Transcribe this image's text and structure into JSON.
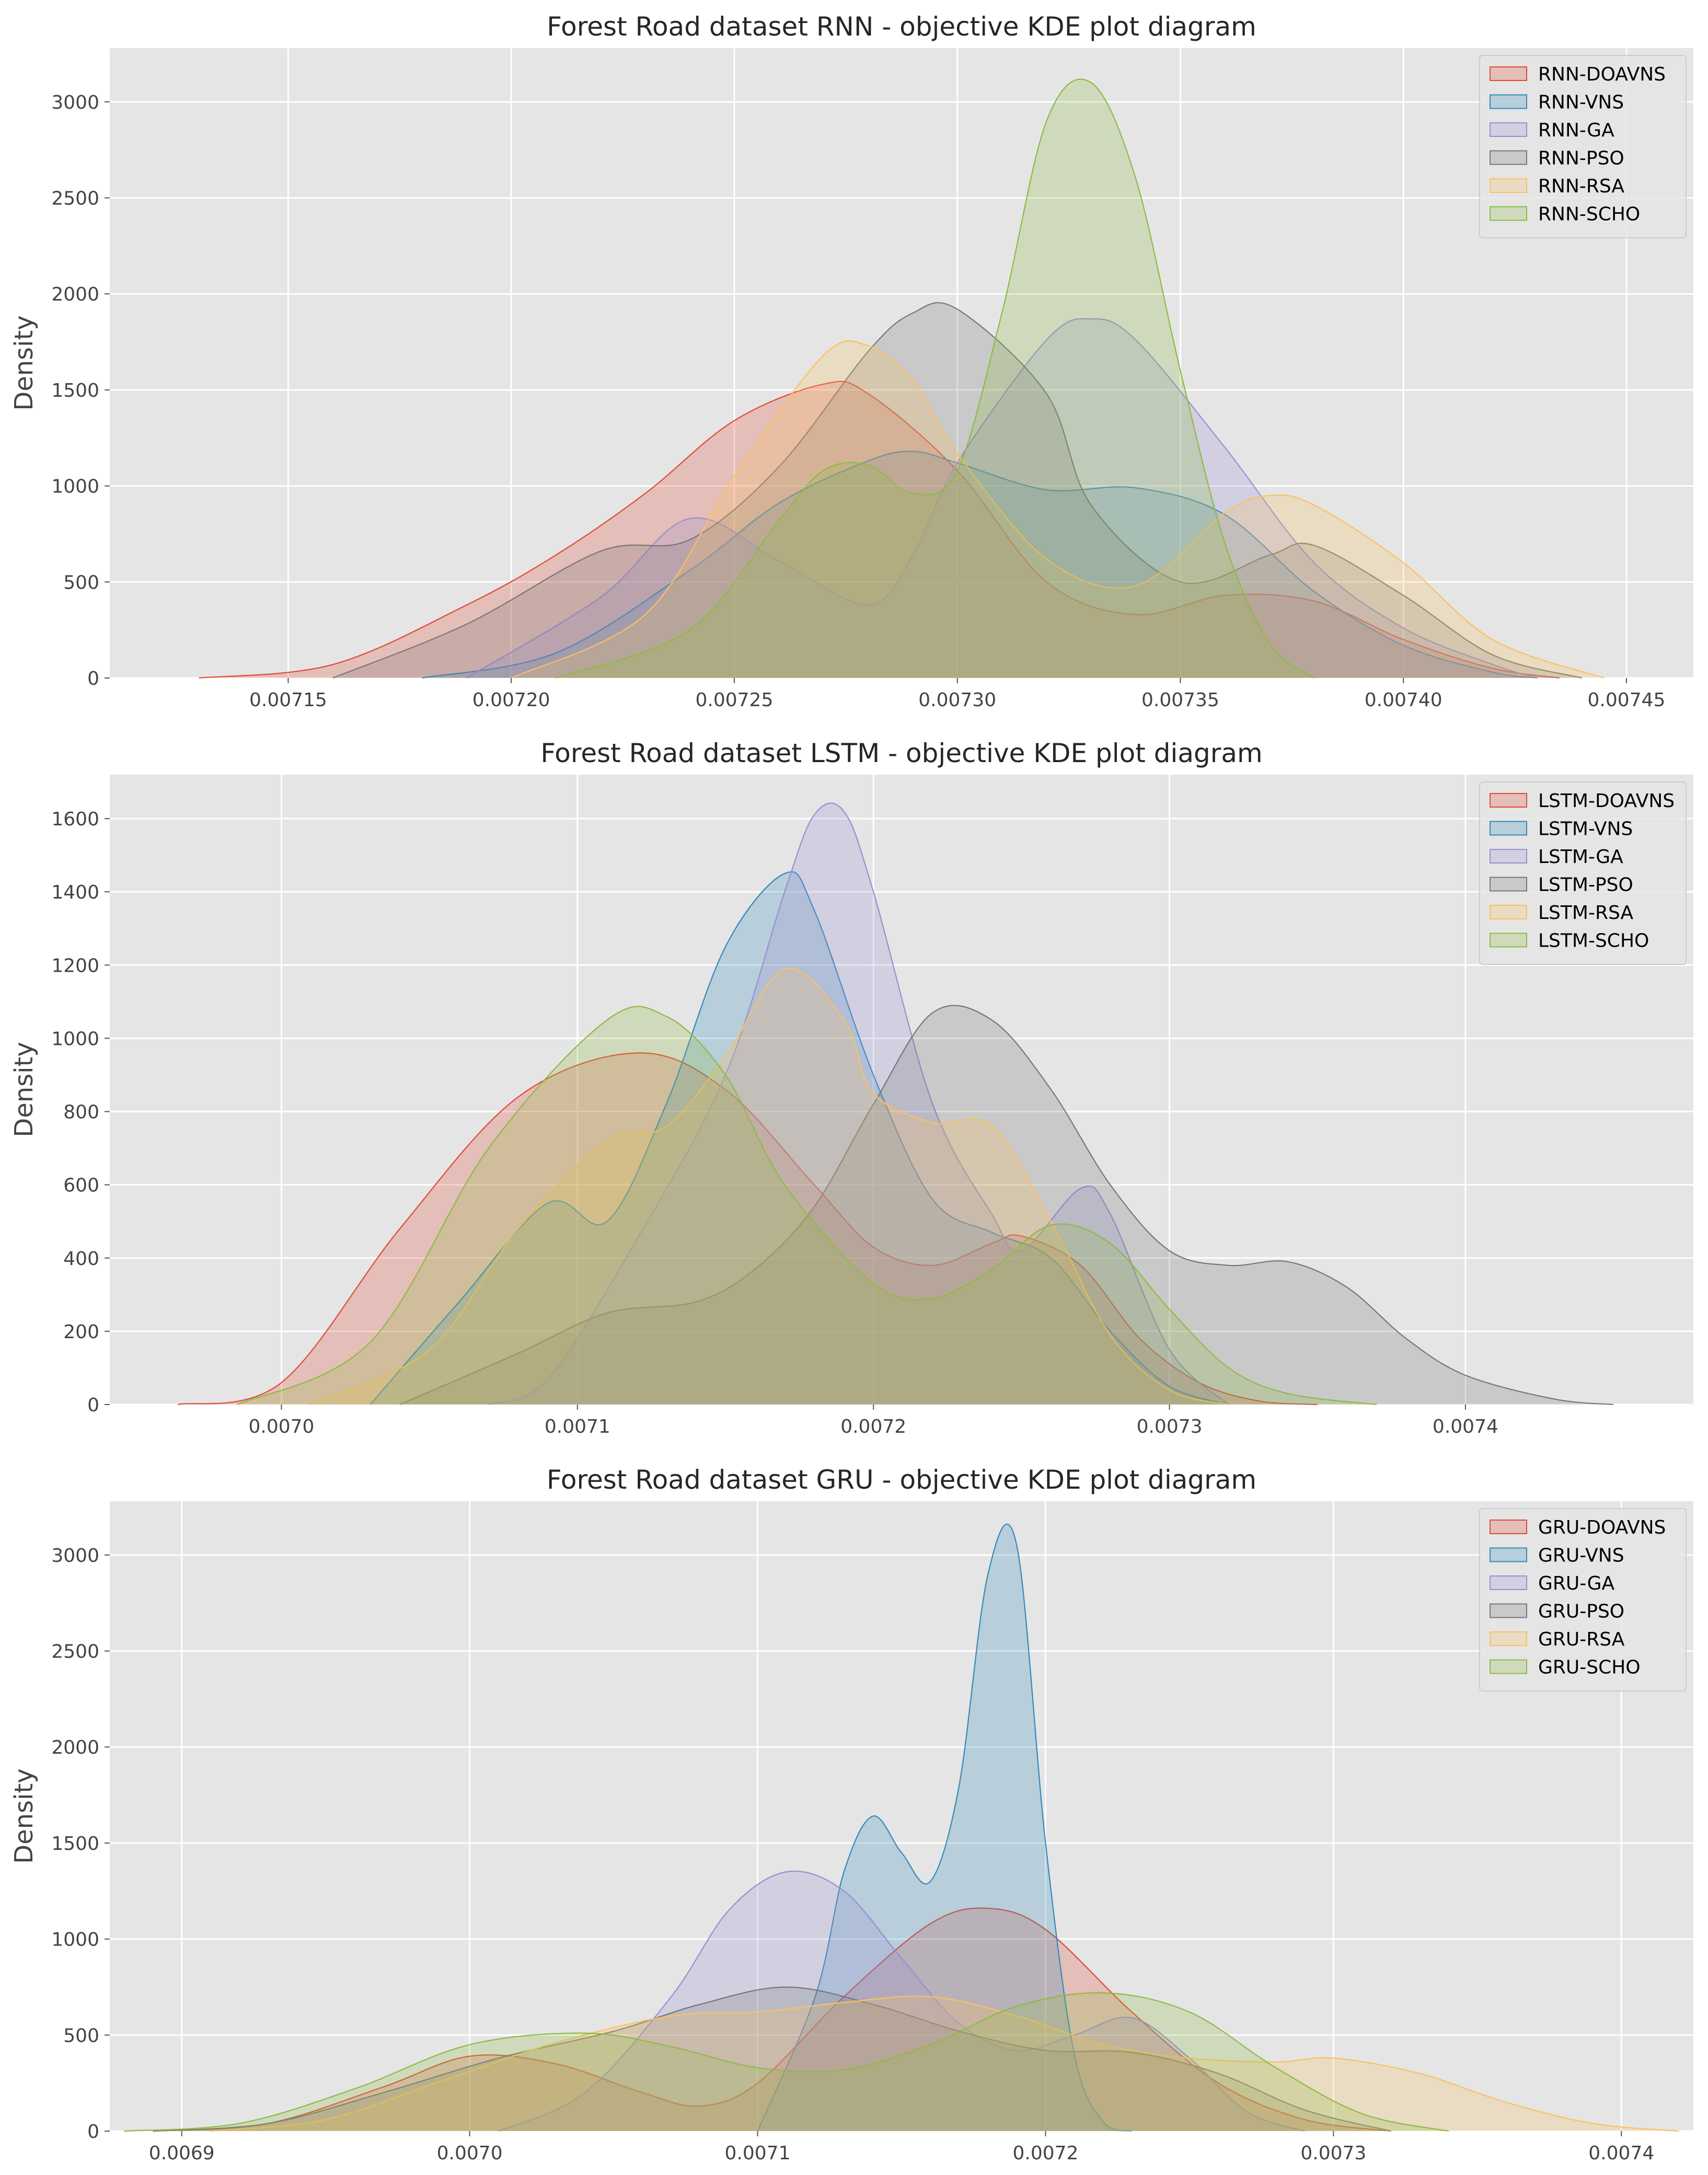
{
  "chart_data": [
    {
      "type": "kde",
      "title": "Forest Road dataset RNN -  objective KDE plot diagram",
      "xlabel": "",
      "ylabel": "Density",
      "xlim": [
        0.00711,
        0.007465
      ],
      "ylim": [
        0,
        3280
      ],
      "xticks": [
        0.00715,
        0.0072,
        0.00725,
        0.0073,
        0.00735,
        0.0074,
        0.00745
      ],
      "xtick_labels": [
        "0.00715",
        "0.00720",
        "0.00725",
        "0.00730",
        "0.00735",
        "0.00740",
        "0.00745"
      ],
      "yticks": [
        0,
        500,
        1000,
        1500,
        2000,
        2500,
        3000
      ],
      "ytick_labels": [
        "0",
        "500",
        "1000",
        "1500",
        "2000",
        "2500",
        "3000"
      ],
      "grid": true,
      "legend_position": "top-right",
      "series": [
        {
          "name": "RNN-DOAVNS",
          "color": "#e24a33",
          "x": [
            0.00713,
            0.00716,
            0.00719,
            0.00721,
            0.00723,
            0.00725,
            0.00727,
            0.00728,
            0.0073,
            0.00732,
            0.00734,
            0.00736,
            0.00738,
            0.0074,
            0.00742,
            0.007435
          ],
          "y": [
            0,
            70,
            380,
            640,
            960,
            1340,
            1530,
            1480,
            1080,
            500,
            330,
            430,
            400,
            200,
            50,
            0
          ]
        },
        {
          "name": "RNN-VNS",
          "color": "#348abd",
          "x": [
            0.00718,
            0.00721,
            0.00724,
            0.00726,
            0.00728,
            0.00729,
            0.0073,
            0.00732,
            0.00734,
            0.00736,
            0.00738,
            0.0074,
            0.00742,
            0.00743
          ],
          "y": [
            0,
            130,
            560,
            910,
            1130,
            1180,
            1120,
            980,
            990,
            850,
            450,
            170,
            30,
            0
          ]
        },
        {
          "name": "RNN-GA",
          "color": "#988ed5",
          "x": [
            0.00719,
            0.00722,
            0.00724,
            0.00726,
            0.00728,
            0.00729,
            0.0073,
            0.00732,
            0.00733,
            0.00734,
            0.00736,
            0.00738,
            0.0074,
            0.00742,
            0.00743
          ],
          "y": [
            0,
            420,
            830,
            610,
            380,
            640,
            1120,
            1760,
            1870,
            1760,
            1200,
            600,
            260,
            70,
            0
          ]
        },
        {
          "name": "RNN-PSO",
          "color": "#777777",
          "x": [
            0.00716,
            0.00719,
            0.00722,
            0.00724,
            0.00726,
            0.00728,
            0.00729,
            0.0073,
            0.00732,
            0.00733,
            0.00735,
            0.00737,
            0.00738,
            0.0074,
            0.00742,
            0.00744
          ],
          "y": [
            0,
            280,
            660,
            720,
            1100,
            1700,
            1900,
            1920,
            1480,
            900,
            500,
            640,
            690,
            430,
            120,
            0
          ]
        },
        {
          "name": "RNN-RSA",
          "color": "#fbc15e",
          "x": [
            0.0072,
            0.00723,
            0.00725,
            0.00727,
            0.00728,
            0.00729,
            0.0073,
            0.00732,
            0.00734,
            0.00736,
            0.00737,
            0.00738,
            0.0074,
            0.00742,
            0.007445
          ],
          "y": [
            0,
            330,
            1050,
            1680,
            1730,
            1550,
            1170,
            620,
            480,
            860,
            950,
            900,
            600,
            200,
            0
          ]
        },
        {
          "name": "RNN-SCHO",
          "color": "#8eba42",
          "x": [
            0.00721,
            0.00724,
            0.00726,
            0.00727,
            0.00728,
            0.00729,
            0.0073,
            0.00731,
            0.00732,
            0.00733,
            0.00734,
            0.00735,
            0.00736,
            0.00737,
            0.00738
          ],
          "y": [
            0,
            250,
            820,
            1080,
            1110,
            960,
            1080,
            1900,
            2900,
            3100,
            2600,
            1600,
            700,
            180,
            0
          ]
        }
      ]
    },
    {
      "type": "kde",
      "title": "Forest Road dataset LSTM -  objective KDE plot diagram",
      "xlabel": "",
      "ylabel": "Density",
      "xlim": [
        0.006942,
        0.007477
      ],
      "ylim": [
        0,
        1720
      ],
      "xticks": [
        0.007,
        0.0071,
        0.0072,
        0.0073,
        0.0074
      ],
      "xtick_labels": [
        "0.0070",
        "0.0071",
        "0.0072",
        "0.0073",
        "0.0074"
      ],
      "yticks": [
        0,
        200,
        400,
        600,
        800,
        1000,
        1200,
        1400,
        1600
      ],
      "ytick_labels": [
        "0",
        "200",
        "400",
        "600",
        "800",
        "1000",
        "1200",
        "1400",
        "1600"
      ],
      "grid": true,
      "legend_position": "top-right",
      "series": [
        {
          "name": "LSTM-DOAVNS",
          "color": "#e24a33",
          "x": [
            0.006965,
            0.007,
            0.00704,
            0.00708,
            0.00712,
            0.00715,
            0.00718,
            0.0072,
            0.00722,
            0.00724,
            0.00725,
            0.00727,
            0.00729,
            0.00731,
            0.00733,
            0.00735
          ],
          "y": [
            0,
            60,
            480,
            840,
            960,
            860,
            600,
            430,
            380,
            440,
            460,
            380,
            180,
            60,
            10,
            0
          ]
        },
        {
          "name": "LSTM-VNS",
          "color": "#348abd",
          "x": [
            0.00703,
            0.00706,
            0.00709,
            0.00711,
            0.00713,
            0.00715,
            0.00717,
            0.00718,
            0.0072,
            0.00722,
            0.00724,
            0.00726,
            0.00728,
            0.0073,
            0.00732
          ],
          "y": [
            0,
            280,
            550,
            500,
            820,
            1250,
            1450,
            1350,
            900,
            560,
            470,
            400,
            200,
            50,
            0
          ]
        },
        {
          "name": "LSTM-GA",
          "color": "#988ed5",
          "x": [
            0.00707,
            0.00709,
            0.00712,
            0.00715,
            0.00717,
            0.00718,
            0.00719,
            0.0072,
            0.00722,
            0.00724,
            0.00725,
            0.00727,
            0.00728,
            0.0073,
            0.00732
          ],
          "y": [
            0,
            70,
            450,
            900,
            1400,
            1610,
            1620,
            1400,
            820,
            520,
            420,
            590,
            520,
            150,
            0
          ]
        },
        {
          "name": "LSTM-PSO",
          "color": "#777777",
          "x": [
            0.00704,
            0.00708,
            0.00711,
            0.00714,
            0.00716,
            0.00718,
            0.0072,
            0.00722,
            0.00724,
            0.00726,
            0.00728,
            0.0073,
            0.00732,
            0.00734,
            0.00736,
            0.00738,
            0.0074,
            0.00743,
            0.00745
          ],
          "y": [
            0,
            140,
            250,
            280,
            370,
            540,
            820,
            1070,
            1050,
            860,
            600,
            420,
            380,
            390,
            320,
            180,
            80,
            15,
            0
          ]
        },
        {
          "name": "LSTM-RSA",
          "color": "#fbc15e",
          "x": [
            0.00701,
            0.00705,
            0.00708,
            0.00711,
            0.00713,
            0.00715,
            0.00717,
            0.00719,
            0.0072,
            0.00722,
            0.00724,
            0.00726,
            0.00728,
            0.0073,
            0.00732
          ],
          "y": [
            0,
            150,
            480,
            720,
            760,
            950,
            1190,
            1050,
            850,
            770,
            760,
            500,
            190,
            40,
            0
          ]
        },
        {
          "name": "LSTM-SCHO",
          "color": "#8eba42",
          "x": [
            0.006985,
            0.00703,
            0.00707,
            0.00711,
            0.00713,
            0.00715,
            0.00717,
            0.0072,
            0.00722,
            0.00724,
            0.00726,
            0.00728,
            0.0073,
            0.00732,
            0.00734,
            0.00737
          ],
          "y": [
            0,
            170,
            700,
            1050,
            1060,
            900,
            600,
            330,
            290,
            370,
            490,
            440,
            260,
            100,
            30,
            0
          ]
        }
      ]
    },
    {
      "type": "kde",
      "title": "Forest Road dataset GRU -  objective KDE plot diagram",
      "xlabel": "",
      "ylabel": "Density",
      "xlim": [
        0.006875,
        0.007425
      ],
      "ylim": [
        0,
        3280
      ],
      "xticks": [
        0.0069,
        0.007,
        0.0071,
        0.0072,
        0.0073,
        0.0074
      ],
      "xtick_labels": [
        "0.0069",
        "0.0070",
        "0.0071",
        "0.0072",
        "0.0073",
        "0.0074"
      ],
      "yticks": [
        0,
        500,
        1000,
        1500,
        2000,
        2500,
        3000
      ],
      "ytick_labels": [
        "0",
        "500",
        "1000",
        "1500",
        "2000",
        "2500",
        "3000"
      ],
      "grid": true,
      "legend_position": "top-right",
      "series": [
        {
          "name": "GRU-DOAVNS",
          "color": "#e24a33",
          "x": [
            0.00689,
            0.00693,
            0.00697,
            0.007,
            0.00703,
            0.00706,
            0.00708,
            0.0071,
            0.00713,
            0.00716,
            0.00718,
            0.0072,
            0.00723,
            0.00726,
            0.00729,
            0.00732
          ],
          "y": [
            0,
            40,
            230,
            390,
            350,
            200,
            130,
            250,
            700,
            1080,
            1160,
            1050,
            620,
            250,
            60,
            0
          ]
        },
        {
          "name": "GRU-VNS",
          "color": "#348abd",
          "x": [
            0.0071,
            0.00712,
            0.00713,
            0.00714,
            0.00715,
            0.00716,
            0.00717,
            0.00718,
            0.00719,
            0.0072,
            0.00721,
            0.00722,
            0.00723
          ],
          "y": [
            0,
            700,
            1350,
            1640,
            1450,
            1300,
            1800,
            2900,
            3050,
            1500,
            400,
            50,
            0
          ]
        },
        {
          "name": "GRU-GA",
          "color": "#988ed5",
          "x": [
            0.00701,
            0.00704,
            0.00707,
            0.00709,
            0.00711,
            0.00713,
            0.00715,
            0.00717,
            0.00719,
            0.00721,
            0.00723,
            0.00725,
            0.00727,
            0.00729
          ],
          "y": [
            0,
            200,
            700,
            1150,
            1350,
            1250,
            900,
            560,
            420,
            500,
            590,
            380,
            100,
            0
          ]
        },
        {
          "name": "GRU-PSO",
          "color": "#777777",
          "x": [
            0.00689,
            0.00693,
            0.00697,
            0.00701,
            0.00705,
            0.00708,
            0.00711,
            0.00714,
            0.00717,
            0.0072,
            0.00723,
            0.00726,
            0.00729,
            0.00732
          ],
          "y": [
            0,
            40,
            200,
            380,
            520,
            660,
            750,
            660,
            520,
            420,
            410,
            300,
            110,
            0
          ]
        },
        {
          "name": "GRU-RSA",
          "color": "#fbc15e",
          "x": [
            0.00691,
            0.00695,
            0.00699,
            0.00703,
            0.00707,
            0.0071,
            0.00713,
            0.00716,
            0.00719,
            0.00722,
            0.00725,
            0.00728,
            0.0073,
            0.00733,
            0.00736,
            0.00739,
            0.00742
          ],
          "y": [
            0,
            60,
            260,
            460,
            600,
            620,
            670,
            700,
            600,
            450,
            380,
            360,
            380,
            300,
            150,
            40,
            0
          ]
        },
        {
          "name": "GRU-SCHO",
          "color": "#8eba42",
          "x": [
            0.00688,
            0.00692,
            0.00696,
            0.007,
            0.00704,
            0.00707,
            0.0071,
            0.00713,
            0.00716,
            0.00719,
            0.00722,
            0.00725,
            0.00728,
            0.00731,
            0.00734
          ],
          "y": [
            0,
            40,
            220,
            450,
            510,
            440,
            330,
            320,
            450,
            650,
            720,
            620,
            330,
            90,
            0
          ]
        }
      ]
    }
  ]
}
